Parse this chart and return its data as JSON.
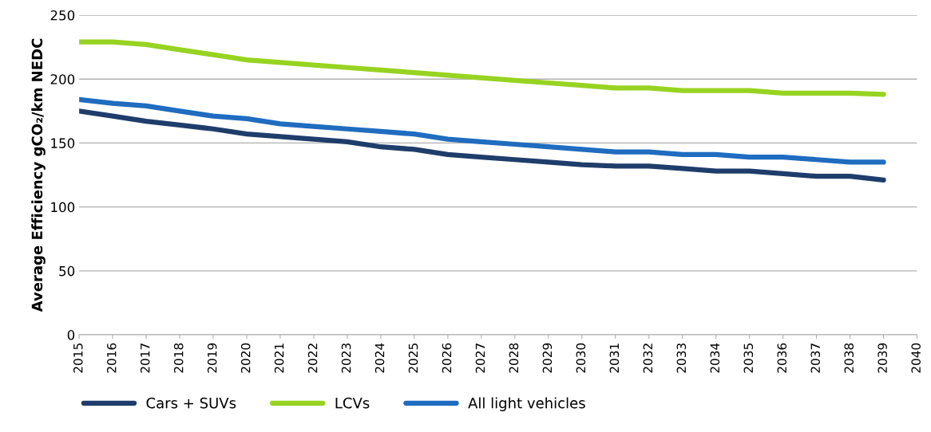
{
  "chart_data": {
    "type": "line",
    "ylabel": "Average Efficiency gCO₂/km NEDC",
    "x": [
      2015,
      2016,
      2017,
      2018,
      2019,
      2020,
      2021,
      2022,
      2023,
      2024,
      2025,
      2026,
      2027,
      2028,
      2029,
      2030,
      2031,
      2032,
      2033,
      2034,
      2035,
      2036,
      2037,
      2038,
      2039
    ],
    "series": [
      {
        "name": "Cars + SUVs",
        "color": "#1f3d6b",
        "values": [
          175,
          171,
          167,
          164,
          161,
          157,
          155,
          153,
          151,
          147,
          145,
          141,
          139,
          137,
          135,
          133,
          132,
          132,
          130,
          128,
          128,
          126,
          124,
          124,
          121
        ]
      },
      {
        "name": "LCVs",
        "color": "#97d321",
        "values": [
          229,
          229,
          227,
          223,
          219,
          215,
          213,
          211,
          209,
          207,
          205,
          203,
          201,
          199,
          197,
          195,
          193,
          193,
          191,
          191,
          191,
          189,
          189,
          189,
          188
        ]
      },
      {
        "name": "All light vehicles",
        "color": "#1f6cc0",
        "values": [
          184,
          181,
          179,
          175,
          171,
          169,
          165,
          163,
          161,
          159,
          157,
          153,
          151,
          149,
          147,
          145,
          143,
          143,
          141,
          141,
          139,
          139,
          137,
          135,
          135
        ]
      }
    ],
    "xlim": [
      2015,
      2040
    ],
    "xticks": [
      2015,
      2016,
      2017,
      2018,
      2019,
      2020,
      2021,
      2022,
      2023,
      2024,
      2025,
      2026,
      2027,
      2028,
      2029,
      2030,
      2031,
      2032,
      2033,
      2034,
      2035,
      2036,
      2037,
      2038,
      2039,
      2040
    ],
    "ylim": [
      0,
      250
    ],
    "yticks": [
      0,
      50,
      100,
      150,
      200,
      250
    ],
    "grid": "y",
    "legend": "bottom left",
    "marker": "none",
    "line_style": "solid"
  }
}
